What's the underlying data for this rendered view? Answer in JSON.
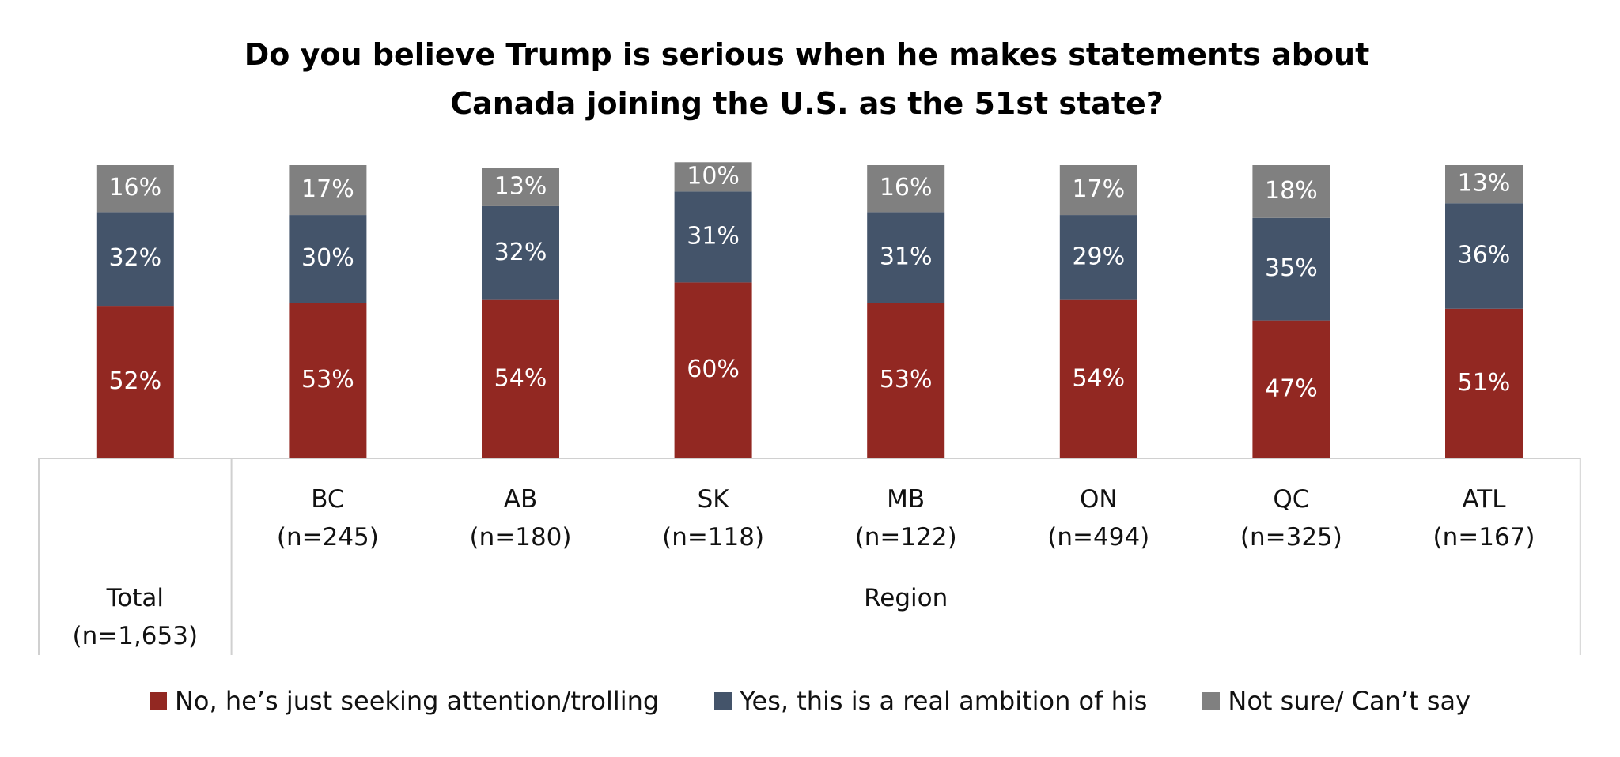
{
  "chart_data": {
    "type": "stacked_bar",
    "title": "Do you believe Trump is serious when he makes statements about Canada joining the U.S. as the 51st state?",
    "categories": [
      null,
      "BC (n=245)",
      "AB (n=180)",
      "SK (n=118)",
      "MB (n=122)",
      "ON (n=494)",
      "QC (n=325)",
      "ATL (n=167)"
    ],
    "x_groups": [
      {
        "label": "Total (n=1,653)",
        "categories": 1
      },
      {
        "label": "Region",
        "categories": 7
      }
    ],
    "ylim": [
      0,
      100
    ],
    "series": [
      {
        "name": "No, he’s just seeking attention/trolling",
        "color": "#922822",
        "values": [
          52,
          53,
          54,
          60,
          53,
          54,
          47,
          51
        ],
        "value_labels": [
          "52%",
          "53%",
          "54%",
          "60%",
          "53%",
          "54%",
          "47%",
          "51%"
        ]
      },
      {
        "name": "Yes, this is a real ambition of his",
        "color": "#44546a",
        "values": [
          32,
          30,
          32,
          31,
          31,
          29,
          35,
          36
        ],
        "value_labels": [
          "32%",
          "30%",
          "32%",
          "31%",
          "31%",
          "29%",
          "35%",
          "36%"
        ]
      },
      {
        "name": "Not sure/ Can’t say",
        "color": "#808080",
        "values": [
          16,
          17,
          13,
          10,
          16,
          17,
          18,
          13
        ],
        "value_labels": [
          "16%",
          "17%",
          "13%",
          "10%",
          "16%",
          "17%",
          "18%",
          "13%"
        ]
      }
    ],
    "legend": "bottom"
  }
}
